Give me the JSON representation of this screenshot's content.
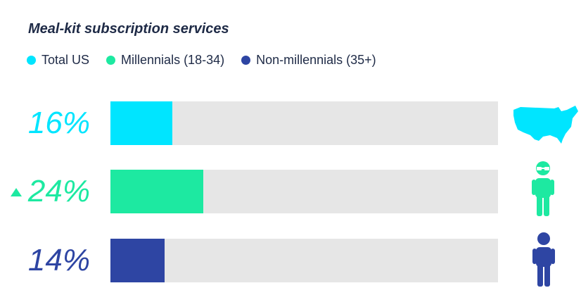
{
  "chart_data": {
    "type": "bar",
    "title": "Meal-kit subscription services",
    "categories": [
      "Total US",
      "Millennials (18-34)",
      "Non-millennials (35+)"
    ],
    "values": [
      16,
      24,
      14
    ],
    "value_labels": [
      "16%",
      "24%",
      "14%"
    ],
    "xlim": [
      0,
      100
    ],
    "legend": {
      "position": "top-left",
      "orientation": "horizontal"
    },
    "grid": false
  },
  "colors": {
    "total": "#00e5ff",
    "millennials": "#1de9a1",
    "non_millennials": "#2e45a3",
    "track": "#e6e6e6",
    "title": "#1e2a46"
  },
  "rows": [
    {
      "icon": "usa-map-icon",
      "color_key": "total",
      "up_indicator": false
    },
    {
      "icon": "person-with-glasses-icon",
      "color_key": "millennials",
      "up_indicator": true
    },
    {
      "icon": "person-icon",
      "color_key": "non_millennials",
      "up_indicator": false
    }
  ]
}
